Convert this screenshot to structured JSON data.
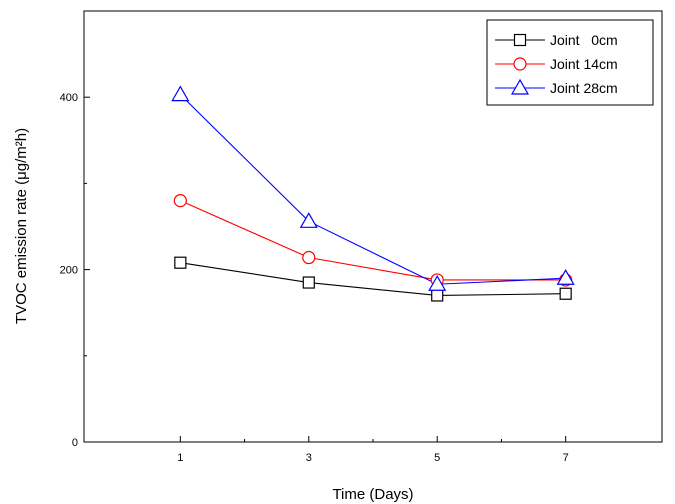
{
  "chart_data": {
    "type": "line",
    "xlabel": "Time (Days)",
    "ylabel": "TVOC emission rate (μg/m²h)",
    "x": [
      1,
      3,
      5,
      7
    ],
    "xlim": [
      -0.5,
      8.5
    ],
    "ylim": [
      0,
      500
    ],
    "xticks": [
      1,
      3,
      5,
      7
    ],
    "yticks": [
      0,
      200,
      400
    ],
    "legend_position": "top-right",
    "grid": false,
    "series": [
      {
        "name": "Joint   0cm",
        "values": [
          208,
          185,
          170,
          172
        ],
        "color": "#000000",
        "marker": "square"
      },
      {
        "name": "Joint 14cm",
        "values": [
          280,
          214,
          188,
          188
        ],
        "color": "#ff0000",
        "marker": "circle"
      },
      {
        "name": "Joint 28cm",
        "values": [
          403,
          256,
          183,
          190
        ],
        "color": "#0000ff",
        "marker": "triangle"
      }
    ]
  }
}
